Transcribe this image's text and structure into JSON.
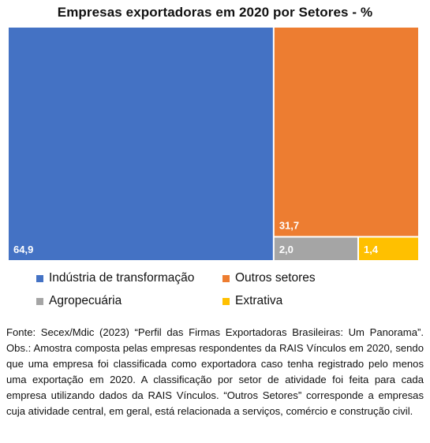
{
  "chart_data": {
    "type": "treemap",
    "title": "Empresas exportadoras em 2020 por Setores - %",
    "items": [
      {
        "name": "Indústria de transformação",
        "value": 64.9,
        "label": "64,9",
        "color": "#4472C4"
      },
      {
        "name": "Outros setores",
        "value": 31.7,
        "label": "31,7",
        "color": "#ED7D31"
      },
      {
        "name": "Agropecuária",
        "value": 2.0,
        "label": "2,0",
        "color": "#A5A5A5"
      },
      {
        "name": "Extrativa",
        "value": 1.4,
        "label": "1,4",
        "color": "#FFC000"
      }
    ],
    "legend_placement": "bottom"
  },
  "source_note": "Fonte: Secex/Mdic (2023) “Perfil das Firmas Exportadoras Brasileiras: Um Panorama”. Obs.: Amostra composta pelas empresas respondentes da RAIS Vínculos em 2020, sendo que uma empresa foi classificada como exportadora caso tenha registrado pelo menos uma exportação em 2020. A classificação por setor de atividade foi feita para cada empresa utilizando dados da RAIS Vínculos. “Outros Setores” corresponde a empresas cuja atividade central, em geral, está relacionada a serviços, comércio e construção civil."
}
